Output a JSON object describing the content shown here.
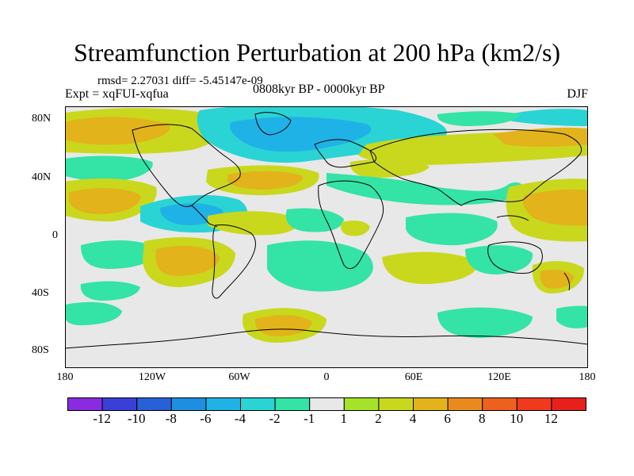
{
  "title": "Streamfunction Perturbation at 200 hPa (km2/s)",
  "stats": "rmsd= 2.27031 diff= -5.45147e-09",
  "experiment": "Expt = xqFUI-xqfua",
  "period": "0808kyr BP - 0000kyr BP",
  "season": "DJF",
  "lat_labels": [
    "80N",
    "40N",
    "0",
    "40S",
    "80S"
  ],
  "lon_labels": [
    "180",
    "120W",
    "60W",
    "0",
    "60E",
    "120E",
    "180"
  ],
  "colorbar": {
    "labels": [
      "-12",
      "-10",
      "-8",
      "-6",
      "-4",
      "-2",
      "-1",
      "1",
      "2",
      "4",
      "6",
      "8",
      "10",
      "12"
    ],
    "colors": [
      "#8a2be2",
      "#3a3fd8",
      "#2860d8",
      "#1e8fe0",
      "#1fb2e6",
      "#2ad4d4",
      "#34e3a6",
      "#e8e8e8",
      "#a5e22a",
      "#c9d81d",
      "#e2b31a",
      "#ea8a1e",
      "#ee6020",
      "#f03a1e",
      "#e8201c"
    ]
  },
  "field_colors": {
    "background": "#e8e8e8",
    "neg_1": "#34e3a6",
    "neg_2": "#2ad4d4",
    "neg_4": "#1fb2e6",
    "pos_1": "#a5e22a",
    "pos_2": "#c9d81d",
    "pos_4": "#e2b31a"
  }
}
